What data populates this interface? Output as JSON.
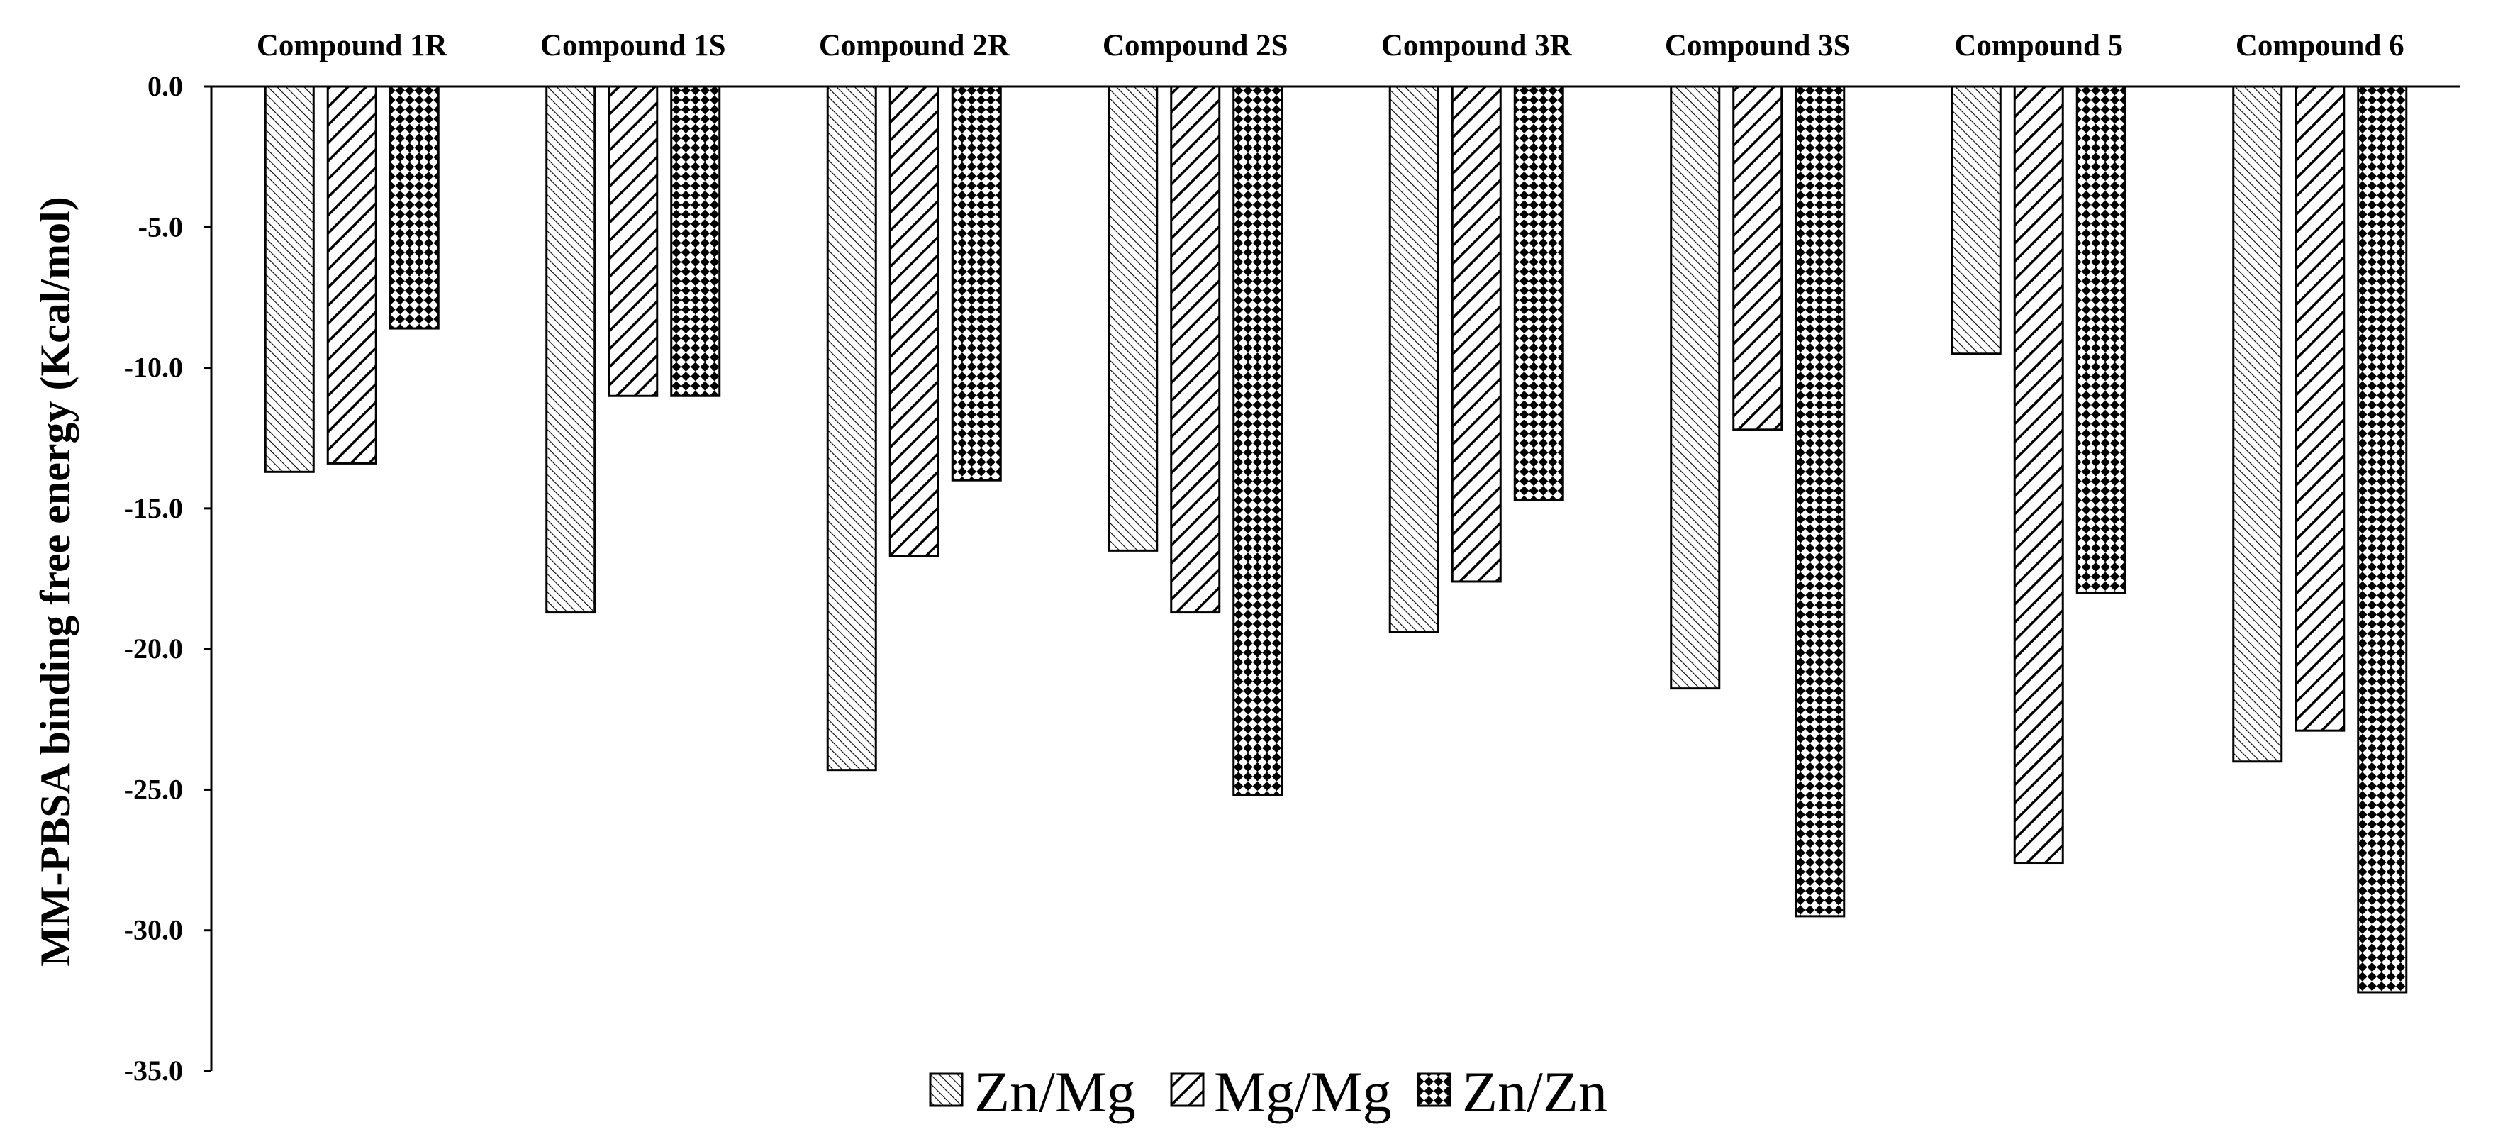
{
  "chart_data": {
    "type": "bar",
    "title": "",
    "xlabel": "",
    "ylabel": "MM-PBSA binding free energy (Kcal/mol)",
    "ylim": [
      -35,
      0
    ],
    "grid": false,
    "legend_position": "bottom-center",
    "categories": [
      "Compound 1R",
      "Compound 1S",
      "Compound 2R",
      "Compound 2S",
      "Compound 3R",
      "Compound 3S",
      "Compound 5",
      "Compound 6"
    ],
    "y_ticks": [
      "0.0",
      "-5.0",
      "-10.0",
      "-15.0",
      "-20.0",
      "-25.0",
      "-30.0",
      "-35.0"
    ],
    "series": [
      {
        "name": "Zn/Mg",
        "pattern": "fine-diagonal",
        "values": [
          -13.7,
          -18.7,
          -24.3,
          -16.5,
          -19.4,
          -21.4,
          -9.5,
          -24.0
        ]
      },
      {
        "name": "Mg/Mg",
        "pattern": "wide-diagonal",
        "values": [
          -13.4,
          -11.0,
          -16.7,
          -18.7,
          -17.6,
          -12.2,
          -27.6,
          -22.9
        ]
      },
      {
        "name": "Zn/Zn",
        "pattern": "checker",
        "values": [
          -8.6,
          -11.0,
          -14.0,
          -25.2,
          -14.7,
          -29.5,
          -18.0,
          -32.2
        ]
      }
    ]
  }
}
